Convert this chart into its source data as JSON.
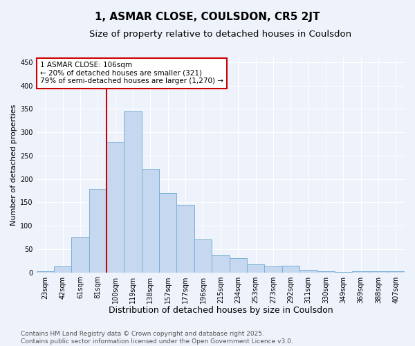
{
  "title": "1, ASMAR CLOSE, COULSDON, CR5 2JT",
  "subtitle": "Size of property relative to detached houses in Coulsdon",
  "xlabel": "Distribution of detached houses by size in Coulsdon",
  "ylabel": "Number of detached properties",
  "categories": [
    "23sqm",
    "42sqm",
    "61sqm",
    "81sqm",
    "100sqm",
    "119sqm",
    "138sqm",
    "157sqm",
    "177sqm",
    "196sqm",
    "215sqm",
    "234sqm",
    "253sqm",
    "273sqm",
    "292sqm",
    "311sqm",
    "330sqm",
    "349sqm",
    "369sqm",
    "388sqm",
    "407sqm"
  ],
  "values": [
    2,
    12,
    75,
    178,
    280,
    345,
    222,
    170,
    145,
    70,
    37,
    30,
    17,
    12,
    14,
    6,
    2,
    1,
    2,
    2,
    3
  ],
  "bar_color": "#c5d8f0",
  "bar_edge_color": "#7aafd4",
  "vline_x": 4.0,
  "vline_color": "#cc0000",
  "ylim": [
    0,
    460
  ],
  "yticks": [
    0,
    50,
    100,
    150,
    200,
    250,
    300,
    350,
    400,
    450
  ],
  "annotation_text": "1 ASMAR CLOSE: 106sqm\n← 20% of detached houses are smaller (321)\n79% of semi-detached houses are larger (1,270) →",
  "annotation_box_color": "#ffffff",
  "annotation_box_edge_color": "#cc0000",
  "footnote": "Contains HM Land Registry data © Crown copyright and database right 2025.\nContains public sector information licensed under the Open Government Licence v3.0.",
  "background_color": "#eef2fb",
  "grid_color": "#ffffff",
  "title_fontsize": 11,
  "subtitle_fontsize": 9.5,
  "xlabel_fontsize": 9,
  "ylabel_fontsize": 8,
  "tick_fontsize": 7,
  "annotation_fontsize": 7.5,
  "footnote_fontsize": 6.5
}
